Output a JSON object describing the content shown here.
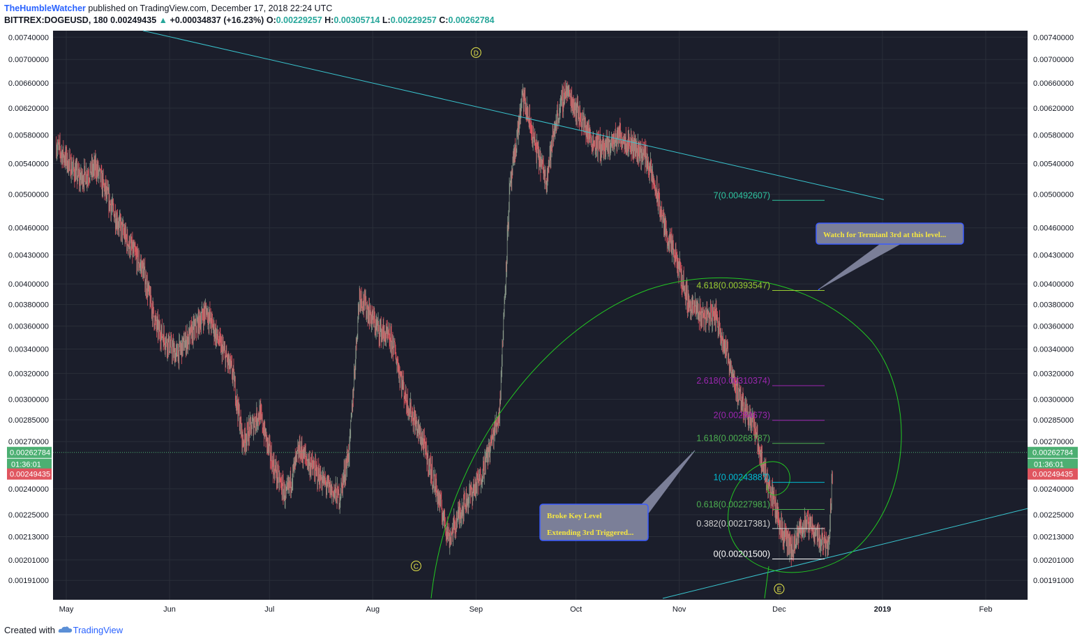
{
  "header": {
    "author": "TheHumbleWatcher",
    "published_text": " published on TradingView.com, December 17, 2018 22:24 UTC",
    "symbol": "BITTREX:DOGEUSD, 180",
    "price": "0.00249435",
    "change_arrow": "▲",
    "change": "+0.00034837 (+16.23%)",
    "ohlc": [
      {
        "label": "O:",
        "value": "0.00229257"
      },
      {
        "label": "H:",
        "value": "0.00305714"
      },
      {
        "label": "L:",
        "value": "0.00229257"
      },
      {
        "label": "C:",
        "value": "0.00262784"
      }
    ]
  },
  "footer": {
    "prefix": "Created with",
    "brand": "TradingView",
    "logo_icon": "tradingview-cloud-icon"
  },
  "colors": {
    "background": "#1b1e2b",
    "grid": "#2a2e39",
    "up": "#8a9a8a",
    "down": "#e0555f",
    "trendline": "#39c5cf",
    "spiral": "#22c922",
    "price_green": "#4caf72",
    "price_red": "#e0555f"
  },
  "chart_data": {
    "type": "candlestick",
    "symbol": "BITTREX:DOGEUSD",
    "interval": "180",
    "y_scale": "log",
    "ylim": [
      0.00182,
      0.00752
    ],
    "y_ticks": [
      "0.00740000",
      "0.00700000",
      "0.00660000",
      "0.00620000",
      "0.00580000",
      "0.00540000",
      "0.00500000",
      "0.00460000",
      "0.00430000",
      "0.00400000",
      "0.00380000",
      "0.00360000",
      "0.00340000",
      "0.00320000",
      "0.00300000",
      "0.00285000",
      "0.00270000",
      "0.00240000",
      "0.00225000",
      "0.00213000",
      "0.00201000",
      "0.00191000"
    ],
    "x_ticks": [
      {
        "date": "2018-05-01",
        "label": "May"
      },
      {
        "date": "2018-06-01",
        "label": "Jun"
      },
      {
        "date": "2018-07-01",
        "label": "Jul"
      },
      {
        "date": "2018-08-01",
        "label": "Aug"
      },
      {
        "date": "2018-09-01",
        "label": "Sep"
      },
      {
        "date": "2018-10-01",
        "label": "Oct"
      },
      {
        "date": "2018-11-01",
        "label": "Nov"
      },
      {
        "date": "2018-12-01",
        "label": "Dec"
      },
      {
        "date": "2019-01-01",
        "label": "2019"
      },
      {
        "date": "2019-02-01",
        "label": "Feb"
      }
    ],
    "price_path": [
      [
        "2018-04-28",
        0.00565
      ],
      [
        "2018-05-05",
        0.0052
      ],
      [
        "2018-05-10",
        0.00535
      ],
      [
        "2018-05-15",
        0.0048
      ],
      [
        "2018-05-20",
        0.0044
      ],
      [
        "2018-05-24",
        0.00415
      ],
      [
        "2018-05-28",
        0.0036
      ],
      [
        "2018-06-03",
        0.00335
      ],
      [
        "2018-06-08",
        0.00355
      ],
      [
        "2018-06-12",
        0.00375
      ],
      [
        "2018-06-16",
        0.00345
      ],
      [
        "2018-06-20",
        0.0032
      ],
      [
        "2018-06-23",
        0.0027
      ],
      [
        "2018-06-28",
        0.0029
      ],
      [
        "2018-07-02",
        0.00255
      ],
      [
        "2018-07-06",
        0.00235
      ],
      [
        "2018-07-10",
        0.00265
      ],
      [
        "2018-07-15",
        0.0025
      ],
      [
        "2018-07-19",
        0.0024
      ],
      [
        "2018-07-22",
        0.00235
      ],
      [
        "2018-07-25",
        0.00265
      ],
      [
        "2018-07-28",
        0.0039
      ],
      [
        "2018-08-02",
        0.0036
      ],
      [
        "2018-08-07",
        0.00345
      ],
      [
        "2018-08-11",
        0.003
      ],
      [
        "2018-08-16",
        0.0027
      ],
      [
        "2018-08-20",
        0.0024
      ],
      [
        "2018-08-24",
        0.00212
      ],
      [
        "2018-08-28",
        0.0023
      ],
      [
        "2018-09-02",
        0.00245
      ],
      [
        "2018-09-05",
        0.00265
      ],
      [
        "2018-09-08",
        0.0029
      ],
      [
        "2018-09-11",
        0.005
      ],
      [
        "2018-09-15",
        0.0064
      ],
      [
        "2018-09-19",
        0.0056
      ],
      [
        "2018-09-22",
        0.0052
      ],
      [
        "2018-09-25",
        0.006
      ],
      [
        "2018-09-28",
        0.0065
      ],
      [
        "2018-10-02",
        0.0061
      ],
      [
        "2018-10-06",
        0.0057
      ],
      [
        "2018-10-10",
        0.0056
      ],
      [
        "2018-10-14",
        0.0058
      ],
      [
        "2018-10-18",
        0.00565
      ],
      [
        "2018-10-22",
        0.0055
      ],
      [
        "2018-10-25",
        0.00505
      ],
      [
        "2018-10-28",
        0.00455
      ],
      [
        "2018-11-01",
        0.00415
      ],
      [
        "2018-11-04",
        0.0038
      ],
      [
        "2018-11-08",
        0.0037
      ],
      [
        "2018-11-12",
        0.0037
      ],
      [
        "2018-11-16",
        0.0033
      ],
      [
        "2018-11-19",
        0.003
      ],
      [
        "2018-11-23",
        0.00285
      ],
      [
        "2018-11-26",
        0.00255
      ],
      [
        "2018-11-29",
        0.00235
      ],
      [
        "2018-12-02",
        0.00215
      ],
      [
        "2018-12-05",
        0.00205
      ],
      [
        "2018-12-08",
        0.0022
      ],
      [
        "2018-12-11",
        0.00218
      ],
      [
        "2018-12-14",
        0.0021
      ],
      [
        "2018-12-16",
        0.00212
      ],
      [
        "2018-12-17",
        0.00249
      ]
    ],
    "last_price": {
      "value": "0.00262784",
      "countdown": "01:36:01"
    },
    "prev_price": {
      "value": "0.00249435"
    },
    "wave_labels": [
      {
        "label": "D",
        "date": "2018-09-01",
        "price": 0.00712,
        "position": "above"
      },
      {
        "label": "C",
        "date": "2018-08-14",
        "price": 0.00198,
        "position": "below"
      },
      {
        "label": "E",
        "date": "2018-12-01",
        "price": 0.00187,
        "position": "below"
      }
    ],
    "fib_levels": [
      {
        "label": "7(0.00492607)",
        "value": 0.00492607,
        "color": "#2ec4a0"
      },
      {
        "label": "4.618(0.00393547)",
        "value": 0.00393547,
        "color": "#9acd32"
      },
      {
        "label": "2.618(0.00310374)",
        "value": 0.00310374,
        "color": "#9c27b0"
      },
      {
        "label": "2(0.00284673)",
        "value": 0.00284673,
        "color": "#9c27b0"
      },
      {
        "label": "1.618(0.00268787)",
        "value": 0.00268787,
        "color": "#4caf50"
      },
      {
        "label": "1(0.00243887)",
        "value": 0.00243887,
        "color": "#00bcd4"
      },
      {
        "label": "0.618(0.00227981)",
        "value": 0.00227981,
        "color": "#4caf50"
      },
      {
        "label": "0.382(0.00217381)",
        "value": 0.00217381,
        "color": "#d0d0d0"
      },
      {
        "label": "0(0.00201500)",
        "value": 0.002015,
        "color": "#ffffff"
      }
    ],
    "annotations": [
      {
        "lines": [
          "Watch for Termianl 3rd at this level..."
        ]
      },
      {
        "lines": [
          "Broke Key Level",
          "Extending 3rd Triggered..."
        ]
      }
    ]
  }
}
